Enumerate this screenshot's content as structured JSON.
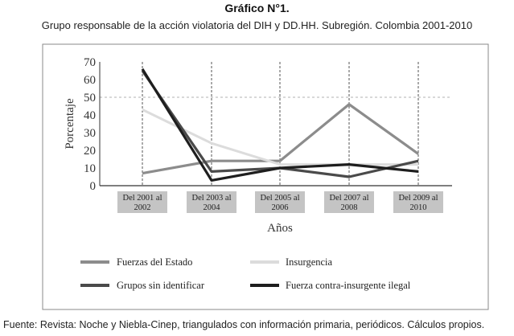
{
  "title": "Gráfico N°1.",
  "subtitle": "Grupo responsable de la acción violatoria del DIH y DD.HH. Subregión.  Colombia 2001-2010",
  "source": "Fuente: Revista: Noche y Niebla-Cinep, triangulados con información primaria, periódicos. Cálculos propios.",
  "chart_data": {
    "type": "line",
    "ylabel": "Porcentaje",
    "xlabel": "Años",
    "ylim": [
      0,
      70
    ],
    "yticks": [
      0,
      10,
      20,
      30,
      40,
      50,
      60,
      70
    ],
    "categories": [
      [
        "Del 2001 al",
        "2002"
      ],
      [
        "Del 2003 al",
        "2004"
      ],
      [
        "Del 2005 al",
        "2006"
      ],
      [
        "Del 2007 al",
        "2008"
      ],
      [
        "Del 2009 al",
        "2010"
      ]
    ],
    "grid": "vertical-dashed",
    "legend_position": "bottom",
    "series": [
      {
        "name": "Fuerzas del Estado",
        "color": "#8c8c8c",
        "values": [
          7,
          14,
          14,
          46,
          18
        ]
      },
      {
        "name": "Insurgencia",
        "color": "#dcdcdc",
        "values": [
          43,
          24,
          12,
          12,
          12
        ]
      },
      {
        "name": "Grupos sin identificar",
        "color": "#4a4a4a",
        "values": [
          65,
          8,
          10,
          5,
          14
        ]
      },
      {
        "name": "Fuerza contra-insurgente ilegal",
        "color": "#1e1e1e",
        "values": [
          66,
          3,
          10,
          12,
          8
        ]
      }
    ]
  }
}
